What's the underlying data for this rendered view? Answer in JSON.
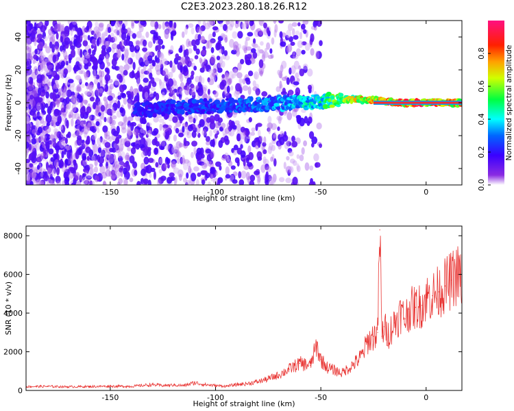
{
  "title": "C2E3.2023.280.18.26.R12",
  "chart_data": [
    {
      "type": "heatmap",
      "xlabel": "Height of straight line (km)",
      "ylabel": "Frequency (Hz)",
      "xlim": [
        -190,
        17
      ],
      "ylim": [
        -50,
        50
      ],
      "xticks": [
        -150,
        -100,
        -50,
        0
      ],
      "yticks": [
        -40,
        -20,
        0,
        20,
        40
      ],
      "colorbar": {
        "label": "Normalized spectral amplitude",
        "range": [
          0,
          1
        ],
        "ticks": [
          0.0,
          0.2,
          0.4,
          0.6,
          0.8
        ],
        "colormap": [
          "#ffffff",
          "#8a2be2",
          "#0000ff",
          "#00ffff",
          "#00ff00",
          "#ffff00",
          "#ff8000",
          "#ff0000",
          "#ff00a0"
        ]
      },
      "ridge": {
        "x": [
          -135,
          -120,
          -100,
          -80,
          -60,
          -50,
          -40,
          -30,
          -20,
          -10,
          0,
          15
        ],
        "y": [
          -4,
          -3,
          -2,
          -1,
          0,
          1,
          2,
          2,
          1,
          0,
          0,
          0
        ],
        "amplitude": [
          0.25,
          0.3,
          0.3,
          0.35,
          0.45,
          0.55,
          0.7,
          0.85,
          0.9,
          0.95,
          0.95,
          0.95
        ]
      }
    },
    {
      "type": "line",
      "xlabel": "Height of straight line (km)",
      "ylabel": "SNR (10 * v/v)",
      "xlim": [
        -190,
        17
      ],
      "ylim": [
        0,
        8500
      ],
      "xticks": [
        -150,
        -100,
        -50,
        0
      ],
      "yticks": [
        0,
        2000,
        4000,
        6000,
        8000
      ],
      "color": "#e8312f",
      "series": [
        {
          "x": [
            -190,
            -180,
            -170,
            -160,
            -150,
            -140,
            -130,
            -125,
            -120,
            -115,
            -110,
            -105,
            -100,
            -95,
            -90,
            -85,
            -80,
            -75,
            -70,
            -65,
            -60,
            -55,
            -52,
            -50,
            -47,
            -45,
            -40,
            -35,
            -32,
            -30,
            -28,
            -25,
            -23,
            -22,
            -21,
            -20,
            -18,
            -15,
            -12,
            -10,
            -8,
            -5,
            -2,
            0,
            3,
            6,
            9,
            12,
            15,
            17
          ],
          "y": [
            200,
            210,
            190,
            200,
            220,
            210,
            300,
            250,
            280,
            250,
            400,
            300,
            250,
            220,
            300,
            350,
            450,
            600,
            800,
            1100,
            1400,
            1300,
            2300,
            1600,
            1200,
            1100,
            900,
            1300,
            1600,
            1900,
            2500,
            2800,
            3000,
            8300,
            2800,
            3300,
            2900,
            3500,
            4000,
            3700,
            4200,
            4300,
            4400,
            4800,
            4900,
            5100,
            5400,
            5700,
            6000,
            5600
          ]
        }
      ]
    }
  ]
}
